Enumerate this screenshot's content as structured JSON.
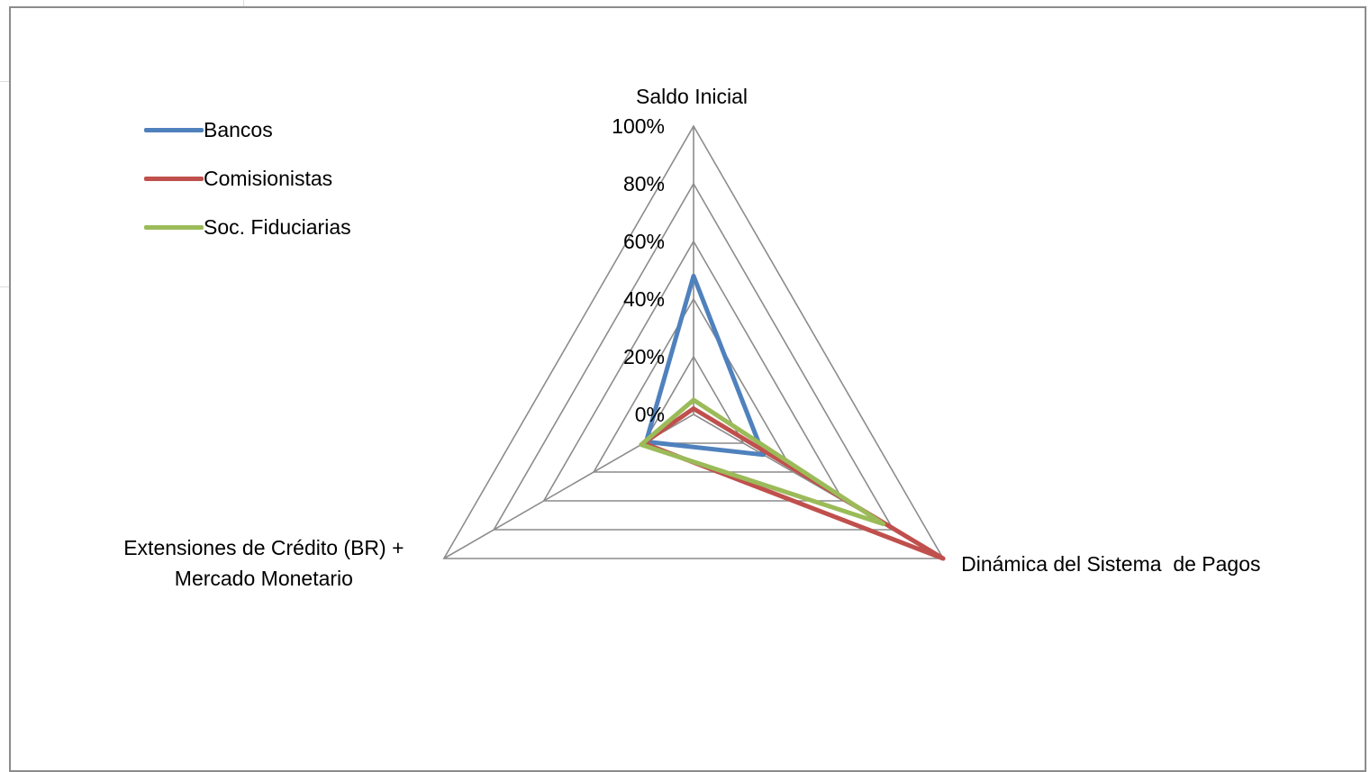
{
  "chart_data": {
    "type": "radar",
    "categories": [
      "Saldo Inicial",
      "Dinámica del Sistema  de Pagos",
      "Extensiones de Crédito (BR) +\nMercado Monetario"
    ],
    "tick_labels": [
      "0%",
      "20%",
      "40%",
      "60%",
      "80%",
      "100%"
    ],
    "rlim": [
      0,
      100
    ],
    "grid": true,
    "legend_position": "top-left",
    "series": [
      {
        "name": "Bancos",
        "color": "#4f81bd",
        "values": [
          48,
          28,
          19
        ]
      },
      {
        "name": "Comisionistas",
        "color": "#c0504d",
        "values": [
          2,
          100,
          20
        ]
      },
      {
        "name": "Soc. Fiduciarias",
        "color": "#9bbb59",
        "values": [
          5,
          76,
          21
        ]
      }
    ]
  }
}
